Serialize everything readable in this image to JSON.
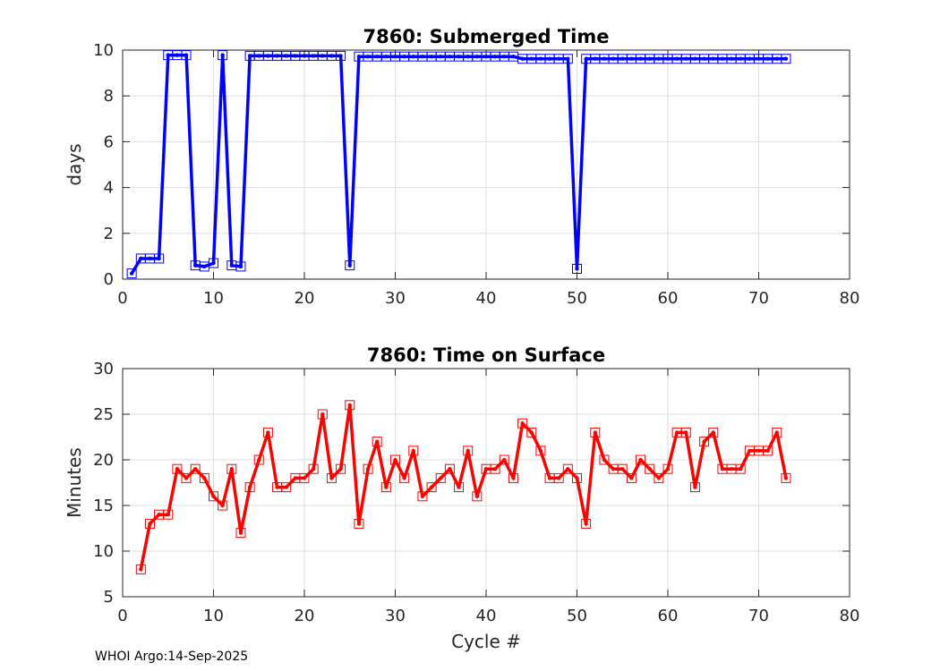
{
  "footer": {
    "text": "WHOI Argo:14-Sep-2025"
  },
  "chart_data": [
    {
      "type": "line",
      "title": "7860: Submerged Time",
      "xlabel": "",
      "ylabel": "days",
      "xlim": [
        0,
        80
      ],
      "ylim": [
        0,
        10
      ],
      "xticks": [
        0,
        10,
        20,
        30,
        40,
        50,
        60,
        70,
        80
      ],
      "yticks": [
        0,
        2,
        4,
        6,
        8,
        10
      ],
      "grid": true,
      "color": "#0000ff",
      "series": [
        {
          "name": "Submerged Time",
          "x": [
            1,
            2,
            3,
            4,
            5,
            6,
            7,
            8,
            9,
            10,
            11,
            12,
            13,
            14,
            15,
            16,
            17,
            18,
            19,
            20,
            21,
            22,
            23,
            24,
            25,
            26,
            27,
            28,
            29,
            30,
            31,
            32,
            33,
            34,
            35,
            36,
            37,
            38,
            39,
            40,
            41,
            42,
            43,
            44,
            45,
            46,
            47,
            48,
            49,
            50,
            51,
            52,
            53,
            54,
            55,
            56,
            57,
            58,
            59,
            60,
            61,
            62,
            63,
            64,
            65,
            66,
            67,
            68,
            69,
            70,
            71,
            72,
            73
          ],
          "values": [
            0.25,
            0.9,
            0.9,
            0.9,
            9.78,
            9.78,
            9.78,
            0.6,
            0.55,
            0.7,
            9.78,
            0.6,
            0.55,
            9.75,
            9.75,
            9.75,
            9.75,
            9.75,
            9.75,
            9.75,
            9.75,
            9.75,
            9.75,
            9.75,
            0.6,
            9.72,
            9.72,
            9.72,
            9.72,
            9.72,
            9.72,
            9.72,
            9.72,
            9.72,
            9.72,
            9.72,
            9.72,
            9.72,
            9.72,
            9.72,
            9.72,
            9.72,
            9.72,
            9.62,
            9.62,
            9.62,
            9.62,
            9.62,
            9.62,
            0.45,
            9.62,
            9.62,
            9.62,
            9.62,
            9.62,
            9.62,
            9.62,
            9.62,
            9.62,
            9.62,
            9.62,
            9.62,
            9.62,
            9.62,
            9.62,
            9.62,
            9.62,
            9.62,
            9.62,
            9.62,
            9.62,
            9.62,
            9.62
          ]
        }
      ]
    },
    {
      "type": "line",
      "title": "7860: Time on Surface",
      "xlabel": "Cycle #",
      "ylabel": "Minutes",
      "xlim": [
        0,
        80
      ],
      "ylim": [
        5,
        30
      ],
      "xticks": [
        0,
        10,
        20,
        30,
        40,
        50,
        60,
        70,
        80
      ],
      "yticks": [
        5,
        10,
        15,
        20,
        25,
        30
      ],
      "grid": true,
      "color": "#ff0000",
      "series": [
        {
          "name": "Time on Surface",
          "x": [
            2,
            3,
            4,
            5,
            6,
            7,
            8,
            9,
            10,
            11,
            12,
            13,
            14,
            15,
            16,
            17,
            18,
            19,
            20,
            21,
            22,
            23,
            24,
            25,
            26,
            27,
            28,
            29,
            30,
            31,
            32,
            33,
            34,
            35,
            36,
            37,
            38,
            39,
            40,
            41,
            42,
            43,
            44,
            45,
            46,
            47,
            48,
            49,
            50,
            51,
            52,
            53,
            54,
            55,
            56,
            57,
            58,
            59,
            60,
            61,
            62,
            63,
            64,
            65,
            66,
            67,
            68,
            69,
            70,
            71,
            72,
            73
          ],
          "values": [
            8,
            13,
            14,
            14,
            19,
            18,
            19,
            18,
            16,
            15,
            19,
            12,
            17,
            20,
            23,
            17,
            17,
            18,
            18,
            19,
            25,
            18,
            19,
            26,
            13,
            19,
            22,
            17,
            20,
            18,
            21,
            16,
            17,
            18,
            19,
            17,
            21,
            16,
            19,
            19,
            20,
            18,
            24,
            23,
            21,
            18,
            18,
            19,
            18,
            13,
            23,
            20,
            19,
            19,
            18,
            20,
            19,
            18,
            19,
            23,
            23,
            17,
            22,
            23,
            19,
            19,
            19,
            21,
            21,
            21,
            23,
            18
          ]
        }
      ]
    }
  ]
}
